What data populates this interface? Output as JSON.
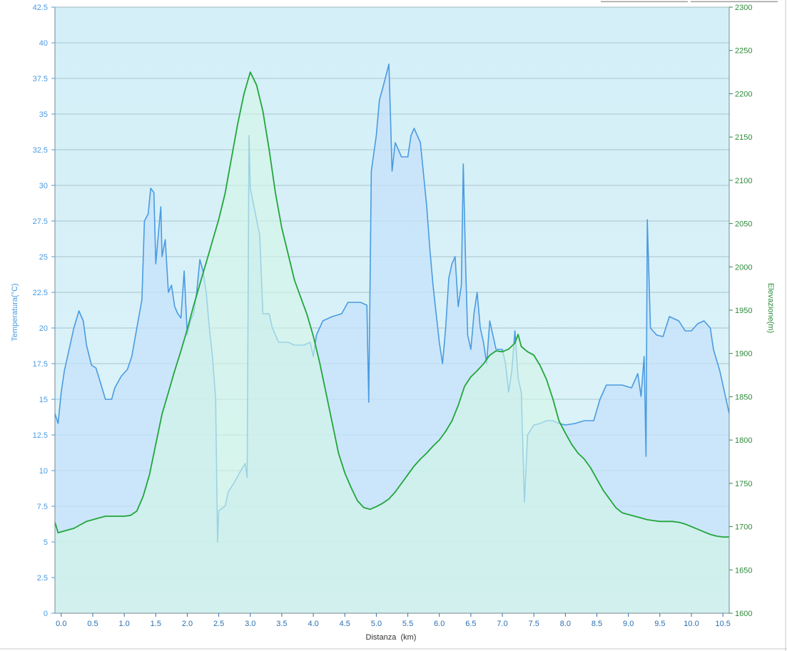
{
  "chart_data": {
    "type": "area",
    "xlabel": "Distanza  (km)",
    "ylabel_left": "Temperatura(°C)",
    "ylabel_right": "Elevazione(m)",
    "xlim": [
      -0.1,
      10.6
    ],
    "ylim_left": [
      0,
      42.5
    ],
    "ylim_right": [
      1600,
      2300
    ],
    "x_ticks": [
      "0.0",
      "0.5",
      "1.0",
      "1.5",
      "2.0",
      "2.5",
      "3.0",
      "3.5",
      "4.0",
      "4.5",
      "5.0",
      "5.5",
      "6.0",
      "6.5",
      "7.0",
      "7.5",
      "8.0",
      "8.5",
      "9.0",
      "9.5",
      "10.0",
      "10.5"
    ],
    "y_left_ticks": [
      "0",
      "2.5",
      "5",
      "7.5",
      "10",
      "12.5",
      "15",
      "17.5",
      "20",
      "22.5",
      "25",
      "27.5",
      "30",
      "32.5",
      "35",
      "37.5",
      "40",
      "42.5"
    ],
    "y_right_ticks": [
      "1600",
      "1650",
      "1700",
      "1750",
      "1800",
      "1850",
      "1900",
      "1950",
      "2000",
      "2050",
      "2100",
      "2150",
      "2200",
      "2250",
      "2300"
    ],
    "grid": true,
    "colors": {
      "temperature": "#4a9be0",
      "elevation": "#22a53a",
      "background": "#d6f0f7"
    },
    "series": [
      {
        "axis": "left",
        "points": [
          [
            -0.1,
            14.0
          ],
          [
            -0.05,
            13.3
          ],
          [
            0.0,
            15.5
          ],
          [
            0.05,
            17.0
          ],
          [
            0.1,
            18.0
          ],
          [
            0.2,
            20.0
          ],
          [
            0.28,
            21.2
          ],
          [
            0.35,
            20.5
          ],
          [
            0.4,
            18.8
          ],
          [
            0.48,
            17.4
          ],
          [
            0.55,
            17.2
          ],
          [
            0.6,
            16.5
          ],
          [
            0.7,
            15.0
          ],
          [
            0.8,
            15.0
          ],
          [
            0.85,
            15.8
          ],
          [
            0.95,
            16.6
          ],
          [
            1.05,
            17.1
          ],
          [
            1.12,
            18.0
          ],
          [
            1.2,
            20.0
          ],
          [
            1.28,
            22.0
          ],
          [
            1.32,
            27.5
          ],
          [
            1.38,
            28.0
          ],
          [
            1.42,
            29.8
          ],
          [
            1.47,
            29.5
          ],
          [
            1.5,
            24.5
          ],
          [
            1.55,
            27.0
          ],
          [
            1.58,
            28.5
          ],
          [
            1.6,
            25.0
          ],
          [
            1.65,
            26.2
          ],
          [
            1.7,
            22.5
          ],
          [
            1.75,
            23.0
          ],
          [
            1.8,
            21.5
          ],
          [
            1.85,
            21.0
          ],
          [
            1.9,
            20.7
          ],
          [
            1.95,
            24.0
          ],
          [
            2.0,
            19.5
          ],
          [
            2.05,
            20.5
          ],
          [
            2.1,
            21.0
          ],
          [
            2.15,
            22.5
          ],
          [
            2.2,
            24.8
          ],
          [
            2.25,
            24.0
          ],
          [
            2.3,
            22.5
          ],
          [
            2.35,
            20.0
          ],
          [
            2.4,
            18.0
          ],
          [
            2.45,
            15.0
          ],
          [
            2.48,
            5.0
          ],
          [
            2.5,
            7.2
          ],
          [
            2.6,
            7.5
          ],
          [
            2.65,
            8.5
          ],
          [
            2.75,
            9.2
          ],
          [
            2.85,
            10.0
          ],
          [
            2.92,
            10.5
          ],
          [
            2.95,
            9.5
          ],
          [
            2.98,
            33.5
          ],
          [
            3.0,
            29.8
          ],
          [
            3.15,
            26.5
          ],
          [
            3.2,
            21.0
          ],
          [
            3.3,
            21.0
          ],
          [
            3.35,
            20.0
          ],
          [
            3.45,
            19.0
          ],
          [
            3.6,
            19.0
          ],
          [
            3.7,
            18.8
          ],
          [
            3.85,
            18.8
          ],
          [
            3.95,
            19.0
          ],
          [
            4.0,
            18.0
          ],
          [
            4.05,
            19.5
          ],
          [
            4.15,
            20.5
          ],
          [
            4.3,
            20.8
          ],
          [
            4.45,
            21.0
          ],
          [
            4.55,
            21.8
          ],
          [
            4.75,
            21.8
          ],
          [
            4.85,
            21.6
          ],
          [
            4.88,
            14.8
          ],
          [
            4.92,
            31.0
          ],
          [
            5.0,
            33.5
          ],
          [
            5.05,
            36.0
          ],
          [
            5.1,
            36.8
          ],
          [
            5.2,
            38.5
          ],
          [
            5.25,
            31.0
          ],
          [
            5.3,
            33.0
          ],
          [
            5.4,
            32.0
          ],
          [
            5.5,
            32.0
          ],
          [
            5.55,
            33.5
          ],
          [
            5.6,
            34.0
          ],
          [
            5.7,
            33.0
          ],
          [
            5.8,
            28.5
          ],
          [
            5.85,
            25.5
          ],
          [
            5.9,
            23.0
          ],
          [
            5.95,
            21.0
          ],
          [
            6.0,
            19.0
          ],
          [
            6.05,
            17.5
          ],
          [
            6.1,
            20.0
          ],
          [
            6.15,
            23.5
          ],
          [
            6.2,
            24.5
          ],
          [
            6.25,
            25.0
          ],
          [
            6.3,
            21.5
          ],
          [
            6.35,
            23.0
          ],
          [
            6.38,
            31.5
          ],
          [
            6.42,
            24.0
          ],
          [
            6.45,
            19.5
          ],
          [
            6.5,
            18.5
          ],
          [
            6.55,
            21.0
          ],
          [
            6.6,
            22.5
          ],
          [
            6.65,
            20.0
          ],
          [
            6.7,
            19.0
          ],
          [
            6.75,
            17.5
          ],
          [
            6.8,
            20.5
          ],
          [
            6.85,
            19.5
          ],
          [
            6.9,
            18.5
          ],
          [
            7.0,
            18.5
          ],
          [
            7.05,
            17.5
          ],
          [
            7.1,
            15.5
          ],
          [
            7.15,
            17.0
          ],
          [
            7.2,
            19.8
          ],
          [
            7.25,
            16.5
          ],
          [
            7.3,
            15.5
          ],
          [
            7.35,
            7.8
          ],
          [
            7.4,
            12.5
          ],
          [
            7.5,
            13.2
          ],
          [
            7.6,
            13.3
          ],
          [
            7.7,
            13.5
          ],
          [
            7.8,
            13.5
          ],
          [
            7.9,
            13.3
          ],
          [
            8.0,
            13.2
          ],
          [
            8.15,
            13.3
          ],
          [
            8.3,
            13.5
          ],
          [
            8.45,
            13.5
          ],
          [
            8.55,
            15.0
          ],
          [
            8.65,
            16.0
          ],
          [
            8.9,
            16.0
          ],
          [
            9.05,
            15.8
          ],
          [
            9.15,
            16.8
          ],
          [
            9.2,
            15.2
          ],
          [
            9.25,
            18.0
          ],
          [
            9.28,
            11.0
          ],
          [
            9.3,
            27.6
          ],
          [
            9.35,
            20.0
          ],
          [
            9.45,
            19.5
          ],
          [
            9.55,
            19.4
          ],
          [
            9.65,
            20.8
          ],
          [
            9.8,
            20.5
          ],
          [
            9.9,
            19.8
          ],
          [
            10.0,
            19.8
          ],
          [
            10.1,
            20.3
          ],
          [
            10.2,
            20.5
          ],
          [
            10.3,
            20.0
          ],
          [
            10.35,
            18.5
          ],
          [
            10.45,
            17.0
          ],
          [
            10.5,
            16.0
          ],
          [
            10.55,
            15.0
          ],
          [
            10.6,
            14.0
          ]
        ]
      },
      {
        "axis": "right",
        "points": [
          [
            -0.1,
            1705
          ],
          [
            -0.05,
            1693
          ],
          [
            0.0,
            1694
          ],
          [
            0.1,
            1696
          ],
          [
            0.2,
            1698
          ],
          [
            0.3,
            1702
          ],
          [
            0.4,
            1706
          ],
          [
            0.5,
            1708
          ],
          [
            0.6,
            1710
          ],
          [
            0.7,
            1712
          ],
          [
            0.8,
            1712
          ],
          [
            0.9,
            1712
          ],
          [
            1.0,
            1712
          ],
          [
            1.1,
            1713
          ],
          [
            1.2,
            1718
          ],
          [
            1.3,
            1735
          ],
          [
            1.4,
            1760
          ],
          [
            1.5,
            1795
          ],
          [
            1.6,
            1830
          ],
          [
            1.7,
            1855
          ],
          [
            1.8,
            1880
          ],
          [
            1.9,
            1903
          ],
          [
            2.0,
            1928
          ],
          [
            2.1,
            1955
          ],
          [
            2.2,
            1980
          ],
          [
            2.3,
            2005
          ],
          [
            2.4,
            2030
          ],
          [
            2.5,
            2055
          ],
          [
            2.6,
            2085
          ],
          [
            2.7,
            2125
          ],
          [
            2.8,
            2165
          ],
          [
            2.9,
            2200
          ],
          [
            3.0,
            2225
          ],
          [
            3.1,
            2210
          ],
          [
            3.2,
            2180
          ],
          [
            3.3,
            2135
          ],
          [
            3.4,
            2085
          ],
          [
            3.5,
            2045
          ],
          [
            3.6,
            2015
          ],
          [
            3.7,
            1985
          ],
          [
            3.8,
            1965
          ],
          [
            3.9,
            1945
          ],
          [
            4.0,
            1920
          ],
          [
            4.1,
            1890
          ],
          [
            4.2,
            1855
          ],
          [
            4.3,
            1820
          ],
          [
            4.4,
            1785
          ],
          [
            4.5,
            1762
          ],
          [
            4.6,
            1745
          ],
          [
            4.7,
            1730
          ],
          [
            4.8,
            1722
          ],
          [
            4.9,
            1720
          ],
          [
            5.0,
            1723
          ],
          [
            5.1,
            1727
          ],
          [
            5.2,
            1732
          ],
          [
            5.3,
            1740
          ],
          [
            5.4,
            1750
          ],
          [
            5.5,
            1760
          ],
          [
            5.6,
            1770
          ],
          [
            5.7,
            1778
          ],
          [
            5.8,
            1785
          ],
          [
            5.9,
            1793
          ],
          [
            6.0,
            1800
          ],
          [
            6.1,
            1810
          ],
          [
            6.2,
            1822
          ],
          [
            6.3,
            1840
          ],
          [
            6.4,
            1862
          ],
          [
            6.5,
            1873
          ],
          [
            6.6,
            1880
          ],
          [
            6.7,
            1888
          ],
          [
            6.8,
            1898
          ],
          [
            6.9,
            1903
          ],
          [
            7.0,
            1902
          ],
          [
            7.1,
            1905
          ],
          [
            7.2,
            1912
          ],
          [
            7.25,
            1922
          ],
          [
            7.3,
            1908
          ],
          [
            7.4,
            1902
          ],
          [
            7.5,
            1898
          ],
          [
            7.6,
            1886
          ],
          [
            7.7,
            1870
          ],
          [
            7.8,
            1848
          ],
          [
            7.9,
            1822
          ],
          [
            8.0,
            1808
          ],
          [
            8.1,
            1795
          ],
          [
            8.2,
            1785
          ],
          [
            8.3,
            1778
          ],
          [
            8.4,
            1768
          ],
          [
            8.5,
            1755
          ],
          [
            8.6,
            1742
          ],
          [
            8.7,
            1732
          ],
          [
            8.8,
            1722
          ],
          [
            8.9,
            1716
          ],
          [
            9.0,
            1714
          ],
          [
            9.1,
            1712
          ],
          [
            9.2,
            1710
          ],
          [
            9.3,
            1708
          ],
          [
            9.4,
            1707
          ],
          [
            9.5,
            1706
          ],
          [
            9.6,
            1706
          ],
          [
            9.7,
            1706
          ],
          [
            9.8,
            1705
          ],
          [
            9.9,
            1703
          ],
          [
            10.0,
            1700
          ],
          [
            10.1,
            1697
          ],
          [
            10.2,
            1694
          ],
          [
            10.3,
            1691
          ],
          [
            10.4,
            1689
          ],
          [
            10.5,
            1688
          ],
          [
            10.6,
            1688
          ]
        ]
      }
    ]
  }
}
